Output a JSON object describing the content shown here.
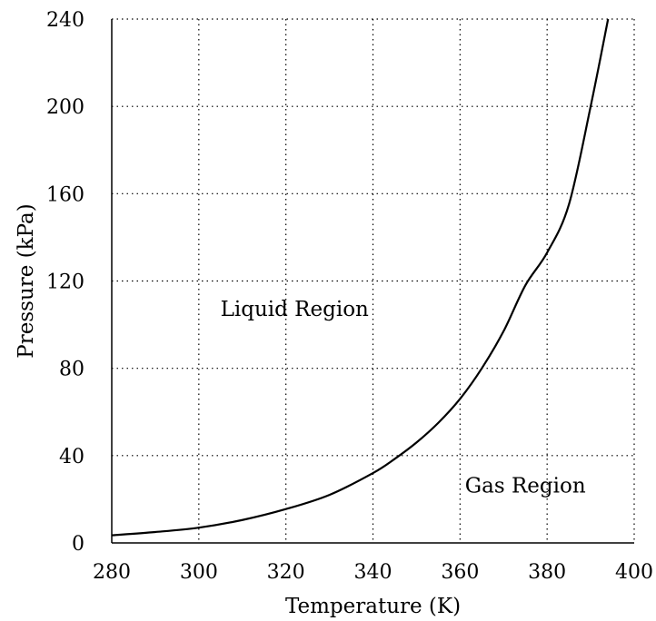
{
  "chart_data": {
    "type": "line",
    "title": "",
    "xlabel": "Temperature (K)",
    "ylabel": "Pressure (kPa)",
    "xlim": [
      280,
      400
    ],
    "ylim": [
      0,
      240
    ],
    "xticks": [
      280,
      300,
      320,
      340,
      360,
      380,
      400
    ],
    "yticks": [
      0,
      40,
      80,
      120,
      160,
      200,
      240
    ],
    "grid": true,
    "grid_style": "dotted",
    "legend": "none",
    "line_color": "#000000",
    "series": [
      {
        "x": [
          280,
          290,
          300,
          310,
          320,
          330,
          340,
          345,
          350,
          355,
          360,
          365,
          370,
          375,
          380,
          385,
          390,
          394
        ],
        "y": [
          3.5,
          5,
          7,
          10.5,
          15.5,
          22,
          32,
          38.5,
          46,
          55,
          66,
          80,
          97,
          118,
          133,
          155,
          200,
          240
        ]
      }
    ],
    "annotations": [
      {
        "text": "Liquid Region",
        "x": 322,
        "y": 104
      },
      {
        "text": "Gas Region",
        "x": 375,
        "y": 23
      }
    ]
  }
}
